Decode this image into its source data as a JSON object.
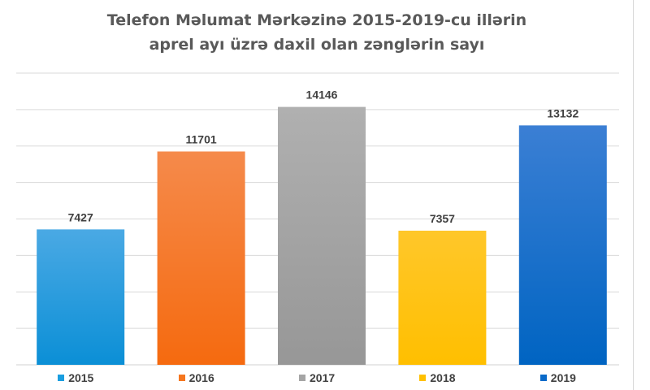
{
  "title_line1": "Telefon Məlumat Mərkəzinə 2015-2019-cu illərin",
  "title_line2": "aprel ayı üzrə daxil olan zənglərin sayı",
  "chart_data": {
    "type": "bar",
    "categories": [
      "2015",
      "2016",
      "2017",
      "2018",
      "2019"
    ],
    "values": [
      7427,
      11701,
      14146,
      7357,
      13132
    ],
    "ylim": [
      0,
      16000
    ],
    "grid": true,
    "data_labels": true,
    "legend_position": "bottom",
    "colors": [
      {
        "top": "#4aa9e4",
        "bottom": "#0b8fd6"
      },
      {
        "top": "#f58a4b",
        "bottom": "#f56a0f"
      },
      {
        "top": "#b0b0b0",
        "bottom": "#979797"
      },
      {
        "top": "#ffc72a",
        "bottom": "#ffbf00"
      },
      {
        "top": "#3b7fd4",
        "bottom": "#0064c2"
      }
    ],
    "legend_colors": [
      "#1a9ee0",
      "#f5761f",
      "#a5a5a5",
      "#ffc000",
      "#0a6ac9"
    ]
  }
}
